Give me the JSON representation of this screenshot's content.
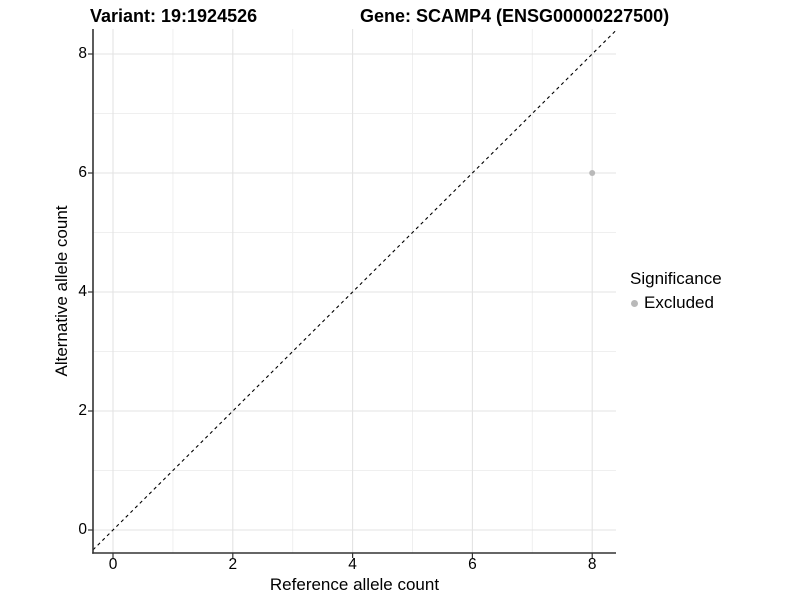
{
  "figure_title": {
    "variant": "Variant: 19:1924526",
    "gene": "Gene: SCAMP4 (ENSG00000227500)"
  },
  "chart_data": {
    "type": "scatter",
    "title": "Variant: 19:1924526   Gene: SCAMP4 (ENSG00000227500)",
    "xlabel": "Reference allele count",
    "ylabel": "Alternative allele count",
    "xlim": [
      -0.4,
      8.4
    ],
    "ylim": [
      -0.4,
      8.4
    ],
    "x_ticks": [
      0,
      2,
      4,
      6,
      8
    ],
    "y_ticks": [
      0,
      2,
      4,
      6,
      8
    ],
    "grid_minor_positions": [
      1,
      3,
      5,
      7
    ],
    "grid": "on",
    "points": [
      {
        "x": 8,
        "y": 6,
        "series": "Excluded"
      }
    ],
    "reference_line": {
      "type": "identity",
      "slope": 1,
      "intercept": 0,
      "style": "dashed"
    },
    "legend": {
      "title": "Significance",
      "position": "right",
      "entries": [
        {
          "label": "Excluded",
          "color": "#b9b9b9",
          "marker": "circle"
        }
      ]
    },
    "colors": {
      "point": "#b9b9b9",
      "grid_major": "#e3e3e3",
      "grid_minor": "#efefef",
      "axis_line": "#333333",
      "reference_line": "#000000",
      "text": "#000000",
      "background": "#ffffff"
    }
  }
}
